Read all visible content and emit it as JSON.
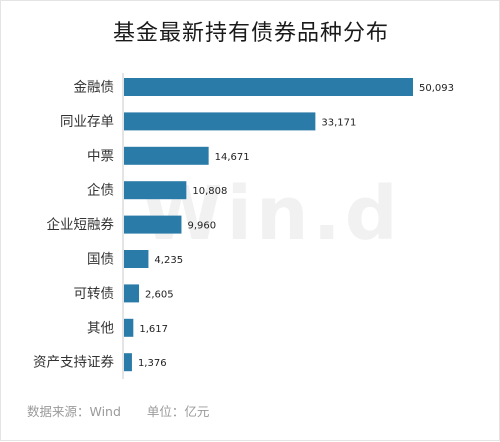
{
  "chart_data": {
    "type": "bar",
    "orientation": "horizontal",
    "title": "基金最新持有债券品种分布",
    "categories": [
      "金融债",
      "同业存单",
      "中票",
      "企债",
      "企业短融券",
      "国债",
      "可转债",
      "其他",
      "资产支持证券"
    ],
    "values": [
      50093,
      33171,
      14671,
      10808,
      9960,
      4235,
      2605,
      1617,
      1376
    ],
    "value_labels": [
      "50,093",
      "33,171",
      "14,671",
      "10,808",
      "9,960",
      "4,235",
      "2,605",
      "1,617",
      "1,376"
    ],
    "xlim": [
      0,
      50093
    ],
    "grid": false,
    "bar_color": "#2b7ba8"
  },
  "footer": {
    "source": "数据来源：Wind",
    "unit": "单位：亿元"
  },
  "watermark": "Win.d"
}
